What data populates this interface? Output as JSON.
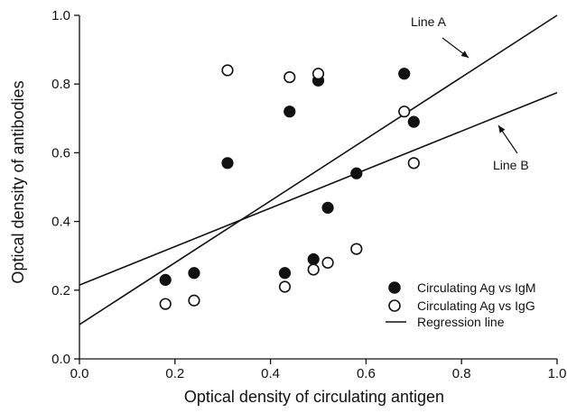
{
  "chart_data": {
    "type": "scatter",
    "title": "",
    "xlabel": "Optical density of circulating antigen",
    "ylabel": "Optical density of antibodies",
    "xlim": [
      0,
      1.0
    ],
    "ylim": [
      0,
      1.0
    ],
    "xticks": [
      "0.0",
      "0.2",
      "0.4",
      "0.6",
      "0.8",
      "1.0"
    ],
    "yticks": [
      "0.0",
      "0.2",
      "0.4",
      "0.6",
      "0.8",
      "1.0"
    ],
    "grid": false,
    "legend_position": "bottom-right",
    "series": [
      {
        "name": "Circulating Ag vs IgM",
        "marker": "filled-circle",
        "x": [
          0.18,
          0.24,
          0.31,
          0.43,
          0.44,
          0.49,
          0.5,
          0.52,
          0.58,
          0.68,
          0.7
        ],
        "y": [
          0.23,
          0.25,
          0.57,
          0.25,
          0.72,
          0.29,
          0.81,
          0.44,
          0.54,
          0.83,
          0.69
        ]
      },
      {
        "name": "Circulating Ag vs IgG",
        "marker": "open-circle",
        "x": [
          0.18,
          0.24,
          0.31,
          0.43,
          0.44,
          0.49,
          0.5,
          0.52,
          0.58,
          0.68,
          0.7
        ],
        "y": [
          0.16,
          0.17,
          0.84,
          0.21,
          0.82,
          0.26,
          0.83,
          0.28,
          0.32,
          0.72,
          0.57
        ]
      }
    ],
    "lines": [
      {
        "name": "Line A",
        "x": [
          0,
          1.0
        ],
        "y": [
          0.1,
          1.0
        ]
      },
      {
        "name": "Line B",
        "x": [
          0,
          1.0
        ],
        "y": [
          0.215,
          0.775
        ]
      }
    ],
    "legend_line_label": "Regression line"
  },
  "colors": {
    "ink": "#111111",
    "background": "#ffffff"
  }
}
